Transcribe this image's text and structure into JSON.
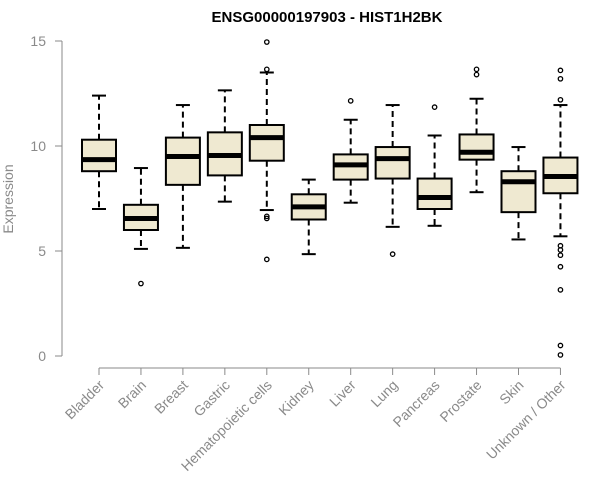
{
  "chart_data": {
    "type": "box",
    "title": "ENSG00000197903 - HIST1H2BK",
    "xlabel": "",
    "ylabel": "Expression",
    "ylim": [
      0,
      15
    ],
    "yticks": [
      0,
      5,
      10,
      15
    ],
    "grid": false,
    "box_fill": "#EFE9D1",
    "categories": [
      "Bladder",
      "Brain",
      "Breast",
      "Gastric",
      "Hematopoietic cells",
      "Kidney",
      "Liver",
      "Lung",
      "Pancreas",
      "Prostate",
      "Skin",
      "Unknown / Other"
    ],
    "boxes": [
      {
        "whisker_low": 7.0,
        "q1": 8.8,
        "median": 9.35,
        "q3": 10.3,
        "whisker_high": 12.4,
        "outliers": []
      },
      {
        "whisker_low": 5.1,
        "q1": 6.0,
        "median": 6.55,
        "q3": 7.2,
        "whisker_high": 8.95,
        "outliers": [
          3.45
        ]
      },
      {
        "whisker_low": 5.15,
        "q1": 8.15,
        "median": 9.5,
        "q3": 10.4,
        "whisker_high": 11.95,
        "outliers": []
      },
      {
        "whisker_low": 7.35,
        "q1": 8.6,
        "median": 9.55,
        "q3": 10.65,
        "whisker_high": 12.65,
        "outliers": []
      },
      {
        "whisker_low": 6.95,
        "q1": 9.3,
        "median": 10.4,
        "q3": 11.0,
        "whisker_high": 13.5,
        "outliers": [
          14.95,
          13.65,
          6.65,
          6.55,
          4.6
        ]
      },
      {
        "whisker_low": 4.85,
        "q1": 6.5,
        "median": 7.1,
        "q3": 7.7,
        "whisker_high": 8.4,
        "outliers": []
      },
      {
        "whisker_low": 7.3,
        "q1": 8.4,
        "median": 9.1,
        "q3": 9.6,
        "whisker_high": 11.25,
        "outliers": [
          12.15
        ]
      },
      {
        "whisker_low": 6.15,
        "q1": 8.45,
        "median": 9.4,
        "q3": 9.95,
        "whisker_high": 11.95,
        "outliers": [
          4.85
        ]
      },
      {
        "whisker_low": 6.2,
        "q1": 7.0,
        "median": 7.55,
        "q3": 8.45,
        "whisker_high": 10.5,
        "outliers": [
          11.85
        ]
      },
      {
        "whisker_low": 7.8,
        "q1": 9.35,
        "median": 9.7,
        "q3": 10.55,
        "whisker_high": 12.25,
        "outliers": [
          13.65,
          13.4
        ]
      },
      {
        "whisker_low": 5.55,
        "q1": 6.85,
        "median": 8.3,
        "q3": 8.8,
        "whisker_high": 9.95,
        "outliers": []
      },
      {
        "whisker_low": 5.7,
        "q1": 7.75,
        "median": 8.55,
        "q3": 9.45,
        "whisker_high": 11.95,
        "outliers": [
          13.6,
          13.2,
          12.2,
          5.25,
          5.05,
          4.8,
          4.25,
          3.15,
          0.5,
          0.05
        ]
      }
    ]
  }
}
